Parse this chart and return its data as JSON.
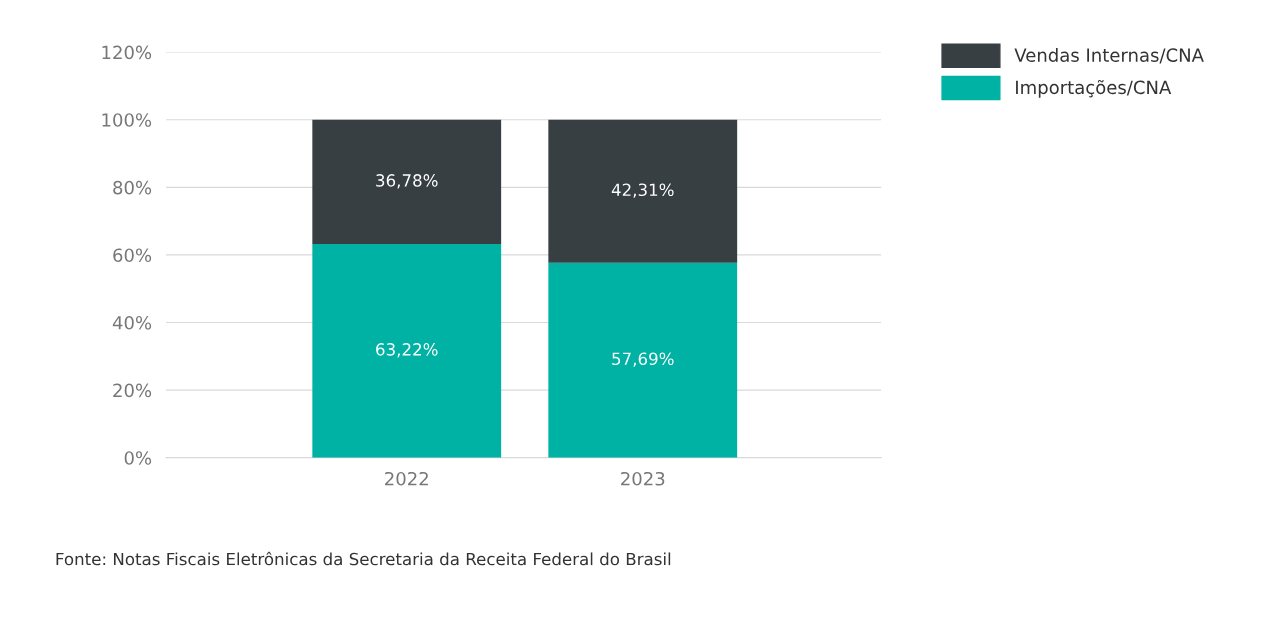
{
  "chart_data": {
    "type": "bar",
    "stacked": true,
    "categories": [
      "2022",
      "2023"
    ],
    "series": [
      {
        "name": "Importações/CNA",
        "color": "#00b2a3",
        "values": [
          63.22,
          57.69
        ],
        "value_labels": [
          "63,22%",
          "57,69%"
        ]
      },
      {
        "name": "Vendas Internas/CNA",
        "color": "#373f43",
        "values": [
          36.78,
          42.31
        ],
        "value_labels": [
          "36,78%",
          "42,31%"
        ]
      }
    ],
    "ylim": [
      0,
      120
    ],
    "yticks": [
      {
        "value": 0,
        "label": "0%"
      },
      {
        "value": 20,
        "label": "20%"
      },
      {
        "value": 40,
        "label": "40%"
      },
      {
        "value": 60,
        "label": "60%"
      },
      {
        "value": 80,
        "label": "80%"
      },
      {
        "value": 100,
        "label": "100%"
      },
      {
        "value": 120,
        "label": "120%"
      }
    ],
    "grid": "y",
    "legend": "top right",
    "annotations": [
      "Fonte: Notas Fiscais Eletrônicas da Secretaria da Receita Federal do Brasil"
    ]
  }
}
